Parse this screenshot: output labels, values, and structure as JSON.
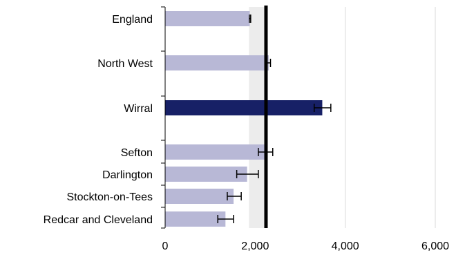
{
  "chart_data": {
    "type": "bar",
    "orientation": "horizontal",
    "categories": [
      "England",
      "North West",
      "Wirral",
      "Sefton",
      "Darlington",
      "Stockton-on-Tees",
      "Redcar and Cleveland"
    ],
    "values": [
      1880,
      2300,
      3490,
      2230,
      1820,
      1520,
      1340
    ],
    "error_low": [
      1870,
      2260,
      3310,
      2070,
      1590,
      1380,
      1170
    ],
    "error_high": [
      1900,
      2340,
      3680,
      2390,
      2070,
      1690,
      1520
    ],
    "highlight": "Wirral",
    "reference_line": 2240,
    "reference_band": [
      1860,
      2240
    ],
    "xlim": [
      0,
      6000
    ],
    "xticks": [
      "0",
      "2,000",
      "4,000",
      "6,000"
    ],
    "grid": true,
    "colors": {
      "bar": "#b8b8d6",
      "highlight": "#172066",
      "reference_line": "#000000",
      "reference_band": "#ececec",
      "error_bar": "#000000",
      "grid": "#d9d9d9"
    }
  }
}
